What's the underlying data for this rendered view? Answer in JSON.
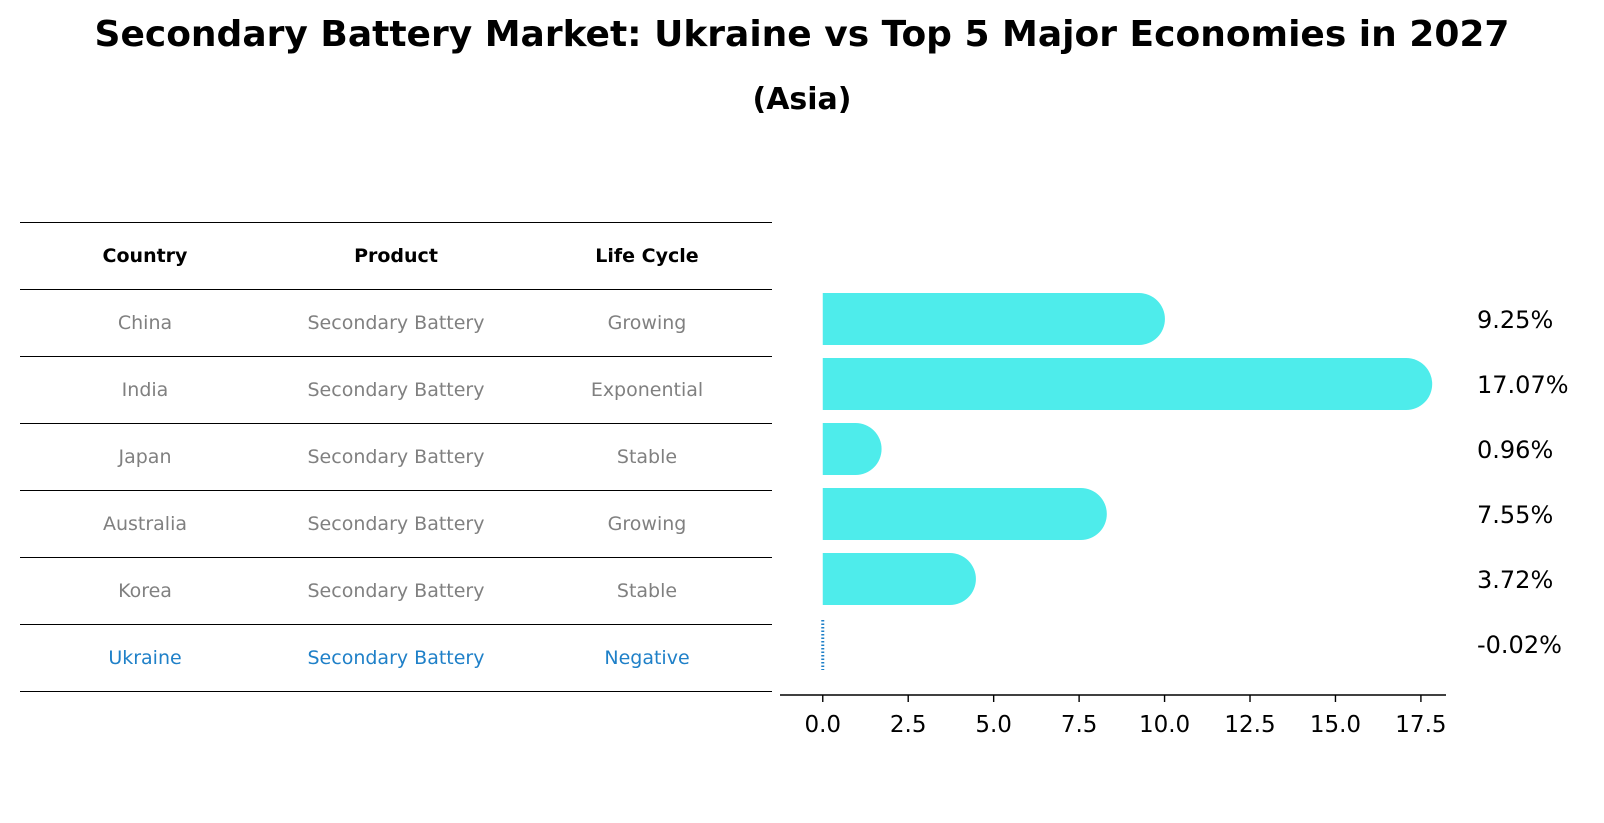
{
  "title": "Secondary Battery Market: Ukraine vs Top 5 Major Economies in 2027",
  "subtitle": "(Asia)",
  "table": {
    "headers": [
      "Country",
      "Product",
      "Life Cycle"
    ],
    "rows": [
      [
        "China",
        "Secondary Battery",
        "Growing"
      ],
      [
        "India",
        "Secondary Battery",
        "Exponential"
      ],
      [
        "Japan",
        "Secondary Battery",
        "Stable"
      ],
      [
        "Australia",
        "Secondary Battery",
        "Growing"
      ],
      [
        "Korea",
        "Secondary Battery",
        "Stable"
      ],
      [
        "Ukraine",
        "Secondary Battery",
        "Negative"
      ]
    ]
  },
  "colors": {
    "bar": "#4EECEB",
    "highlight": "#1F80C8",
    "muted": "#808080"
  },
  "chart_data": {
    "type": "bar",
    "orientation": "horizontal",
    "title": "Secondary Battery Market: Ukraine vs Top 5 Major Economies in 2027",
    "subtitle": "(Asia)",
    "categories": [
      "China",
      "India",
      "Japan",
      "Australia",
      "Korea",
      "Ukraine"
    ],
    "values": [
      9.25,
      17.07,
      0.96,
      7.55,
      3.72,
      -0.02
    ],
    "value_labels": [
      "9.25%",
      "17.07%",
      "0.96%",
      "7.55%",
      "3.72%",
      "-0.02%"
    ],
    "xlim": [
      -0.9,
      18.0
    ],
    "xticks": [
      0.0,
      2.5,
      5.0,
      7.5,
      10.0,
      12.5,
      15.0,
      17.5
    ],
    "xtick_labels": [
      "0.0",
      "2.5",
      "5.0",
      "7.5",
      "10.0",
      "12.5",
      "15.0",
      "17.5"
    ],
    "xlabel": "",
    "ylabel": "",
    "grid": false
  }
}
